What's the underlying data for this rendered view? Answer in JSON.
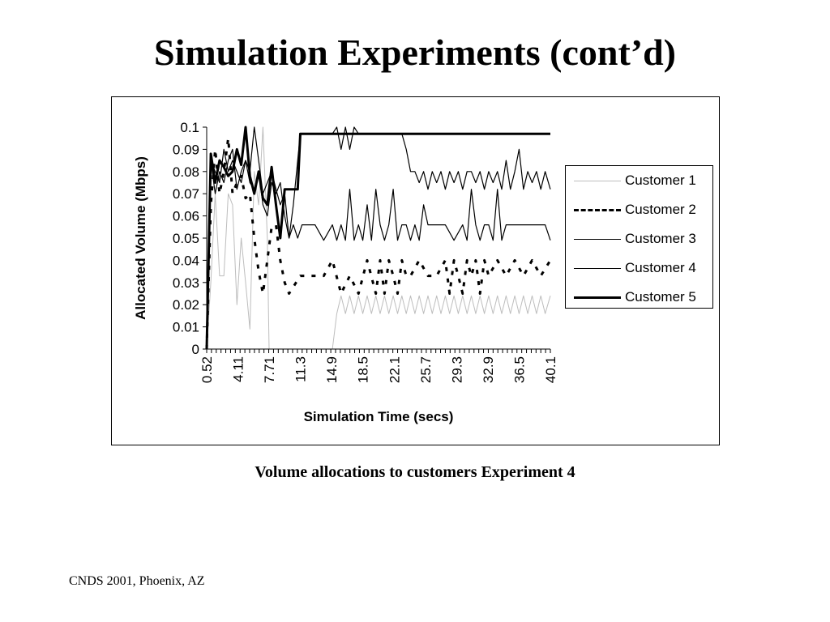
{
  "slide": {
    "title": "Simulation Experiments (cont’d)",
    "caption": "Volume allocations to customers Experiment 4",
    "footer": "CNDS 2001, Phoenix, AZ"
  },
  "chart_data": {
    "type": "line",
    "title": "",
    "xlabel": "Simulation Time (secs)",
    "ylabel": "Allocated Volume (Mbps)",
    "ylim": [
      0,
      0.1
    ],
    "yticks": [
      "0",
      "0.01",
      "0.02",
      "0.03",
      "0.04",
      "0.05",
      "0.06",
      "0.07",
      "0.08",
      "0.09",
      "0.1"
    ],
    "xlim": [
      0.52,
      40.1
    ],
    "xticks": [
      "0.52",
      "4.11",
      "7.71",
      "11.3",
      "14.9",
      "18.5",
      "22.1",
      "25.7",
      "29.3",
      "32.9",
      "36.5",
      "40.1"
    ],
    "grid": false,
    "legend": "right",
    "series": [
      {
        "name": "Customer 1",
        "style": "thin-gray",
        "x": [
          0.52,
          1.0,
          1.5,
          2.0,
          2.5,
          3.0,
          3.5,
          4.0,
          4.5,
          5.0,
          5.5,
          6.0,
          6.5,
          7.0,
          7.5,
          7.71,
          15.0,
          15.5,
          16.0,
          16.5,
          17.0,
          17.5,
          18.0,
          18.5,
          19.0,
          19.5,
          20.0,
          20.5,
          21.0,
          21.5,
          22.0,
          22.5,
          23.0,
          23.5,
          24.0,
          24.5,
          25.0,
          25.5,
          26.0,
          26.5,
          27.0,
          27.5,
          28.0,
          28.5,
          29.0,
          29.5,
          30.0,
          30.5,
          31.0,
          31.5,
          32.0,
          32.5,
          33.0,
          33.5,
          34.0,
          34.5,
          35.0,
          35.5,
          36.0,
          36.5,
          37.0,
          37.5,
          38.0,
          38.5,
          39.0,
          39.5,
          40.1
        ],
        "values": [
          0,
          0.03,
          0.07,
          0.033,
          0.033,
          0.07,
          0.065,
          0.02,
          0.05,
          0.03,
          0.009,
          0.08,
          0.065,
          0.1,
          0.05,
          0,
          0,
          0.016,
          0.024,
          0.016,
          0.024,
          0.016,
          0.024,
          0.016,
          0.024,
          0.016,
          0.024,
          0.016,
          0.024,
          0.016,
          0.024,
          0.016,
          0.024,
          0.016,
          0.024,
          0.016,
          0.024,
          0.016,
          0.024,
          0.016,
          0.024,
          0.016,
          0.024,
          0.016,
          0.024,
          0.016,
          0.024,
          0.016,
          0.024,
          0.016,
          0.024,
          0.016,
          0.024,
          0.016,
          0.024,
          0.016,
          0.024,
          0.016,
          0.024,
          0.016,
          0.024,
          0.016,
          0.024,
          0.016,
          0.024,
          0.016,
          0.024
        ]
      },
      {
        "name": "Customer 2",
        "style": "dashed",
        "x": [
          0.52,
          1.0,
          1.5,
          2.0,
          2.5,
          3.0,
          3.5,
          4.0,
          4.5,
          5.0,
          5.5,
          6.0,
          6.5,
          7.0,
          7.5,
          8.0,
          8.5,
          9.0,
          9.5,
          10.0,
          11.3,
          14.0,
          15.0,
          16.0,
          17.0,
          18.0,
          19.0,
          20.0,
          20.5,
          21.0,
          21.5,
          22.0,
          22.5,
          23.0,
          23.5,
          24.0,
          25.0,
          26.0,
          27.0,
          28.0,
          28.5,
          29.0,
          29.5,
          30.0,
          30.5,
          31.0,
          31.5,
          32.0,
          32.5,
          33.0,
          34.0,
          35.0,
          36.0,
          37.0,
          38.0,
          39.0,
          40.1
        ],
        "values": [
          0,
          0.065,
          0.09,
          0.07,
          0.08,
          0.095,
          0.07,
          0.075,
          0.078,
          0.068,
          0.07,
          0.05,
          0.035,
          0.025,
          0.04,
          0.055,
          0.056,
          0.04,
          0.03,
          0.025,
          0.033,
          0.033,
          0.04,
          0.025,
          0.033,
          0.025,
          0.04,
          0.025,
          0.04,
          0.025,
          0.04,
          0.033,
          0.025,
          0.04,
          0.033,
          0.033,
          0.04,
          0.033,
          0.033,
          0.04,
          0.025,
          0.04,
          0.033,
          0.025,
          0.04,
          0.033,
          0.04,
          0.025,
          0.04,
          0.033,
          0.04,
          0.033,
          0.04,
          0.033,
          0.04,
          0.033,
          0.04
        ]
      },
      {
        "name": "Customer 3",
        "style": "thin",
        "x": [
          0.52,
          1.0,
          1.5,
          2.0,
          2.5,
          3.0,
          3.5,
          4.0,
          4.5,
          5.0,
          5.5,
          6.0,
          6.5,
          7.0,
          7.5,
          8.0,
          8.5,
          9.0,
          9.5,
          10.0,
          10.5,
          11.0,
          11.5,
          12.0,
          13.0,
          14.0,
          15.0,
          15.5,
          16.0,
          16.5,
          17.0,
          17.5,
          18.0,
          18.5,
          19.0,
          19.5,
          20.0,
          20.5,
          21.0,
          21.5,
          22.0,
          22.5,
          23.0,
          23.5,
          24.0,
          24.5,
          25.0,
          25.5,
          26.0,
          27.0,
          28.0,
          29.0,
          30.0,
          30.5,
          31.0,
          31.5,
          32.0,
          32.5,
          33.0,
          33.5,
          34.0,
          34.5,
          35.0,
          35.5,
          36.0,
          37.0,
          38.0,
          39.0,
          39.5,
          40.1
        ],
        "values": [
          0,
          0.085,
          0.07,
          0.08,
          0.075,
          0.085,
          0.09,
          0.072,
          0.08,
          0.085,
          0.075,
          0.072,
          0.08,
          0.065,
          0.06,
          0.075,
          0.07,
          0.075,
          0.06,
          0.05,
          0.056,
          0.05,
          0.056,
          0.056,
          0.056,
          0.049,
          0.056,
          0.049,
          0.056,
          0.049,
          0.072,
          0.049,
          0.056,
          0.049,
          0.065,
          0.049,
          0.072,
          0.056,
          0.049,
          0.056,
          0.072,
          0.049,
          0.056,
          0.056,
          0.049,
          0.056,
          0.049,
          0.065,
          0.056,
          0.056,
          0.056,
          0.049,
          0.056,
          0.049,
          0.072,
          0.056,
          0.049,
          0.056,
          0.056,
          0.049,
          0.072,
          0.049,
          0.056,
          0.056,
          0.056,
          0.056,
          0.056,
          0.056,
          0.056,
          0.049
        ]
      },
      {
        "name": "Customer 4",
        "style": "thin",
        "x": [
          0.52,
          1.0,
          1.5,
          2.0,
          2.5,
          3.0,
          3.5,
          4.0,
          4.5,
          5.0,
          5.5,
          6.0,
          6.5,
          7.0,
          7.5,
          8.0,
          8.5,
          9.0,
          9.5,
          10.0,
          10.5,
          11.3,
          14.0,
          15.0,
          15.5,
          16.0,
          16.5,
          17.0,
          17.5,
          18.0,
          18.5,
          19.0,
          20.0,
          21.0,
          22.0,
          23.0,
          23.5,
          24.0,
          24.5,
          25.0,
          25.5,
          26.0,
          26.5,
          27.0,
          27.5,
          28.0,
          28.5,
          29.0,
          29.5,
          30.0,
          30.5,
          31.0,
          31.5,
          32.0,
          32.5,
          33.0,
          33.5,
          34.0,
          34.5,
          35.0,
          35.5,
          36.0,
          36.5,
          37.0,
          37.5,
          38.0,
          38.5,
          39.0,
          39.5,
          40.1
        ],
        "values": [
          0,
          0.085,
          0.08,
          0.075,
          0.09,
          0.08,
          0.085,
          0.08,
          0.075,
          0.085,
          0.08,
          0.1,
          0.085,
          0.07,
          0.075,
          0.08,
          0.072,
          0.065,
          0.07,
          0.05,
          0.065,
          0.097,
          0.097,
          0.097,
          0.1,
          0.09,
          0.1,
          0.09,
          0.1,
          0.097,
          0.097,
          0.097,
          0.097,
          0.097,
          0.097,
          0.097,
          0.09,
          0.08,
          0.08,
          0.075,
          0.08,
          0.072,
          0.08,
          0.075,
          0.08,
          0.072,
          0.08,
          0.075,
          0.08,
          0.072,
          0.08,
          0.08,
          0.075,
          0.08,
          0.072,
          0.08,
          0.075,
          0.08,
          0.072,
          0.085,
          0.072,
          0.08,
          0.09,
          0.072,
          0.08,
          0.075,
          0.08,
          0.072,
          0.08,
          0.072
        ]
      },
      {
        "name": "Customer 5",
        "style": "thick",
        "x": [
          0.52,
          1.0,
          1.5,
          2.0,
          2.5,
          3.0,
          3.5,
          4.0,
          4.5,
          5.0,
          5.5,
          6.0,
          6.5,
          7.0,
          7.5,
          8.0,
          8.5,
          9.0,
          9.5,
          10.0,
          10.5,
          11.0,
          11.3,
          12.0,
          14.0,
          16.0,
          18.0,
          20.0,
          22.0,
          24.0,
          26.0,
          28.0,
          30.0,
          32.0,
          34.0,
          36.0,
          38.0,
          40.1
        ],
        "values": [
          0,
          0.088,
          0.075,
          0.085,
          0.082,
          0.078,
          0.08,
          0.09,
          0.083,
          0.1,
          0.078,
          0.07,
          0.08,
          0.068,
          0.065,
          0.082,
          0.065,
          0.05,
          0.072,
          0.072,
          0.072,
          0.072,
          0.097,
          0.097,
          0.097,
          0.097,
          0.097,
          0.097,
          0.097,
          0.097,
          0.097,
          0.097,
          0.097,
          0.097,
          0.097,
          0.097,
          0.097,
          0.097
        ]
      }
    ]
  }
}
